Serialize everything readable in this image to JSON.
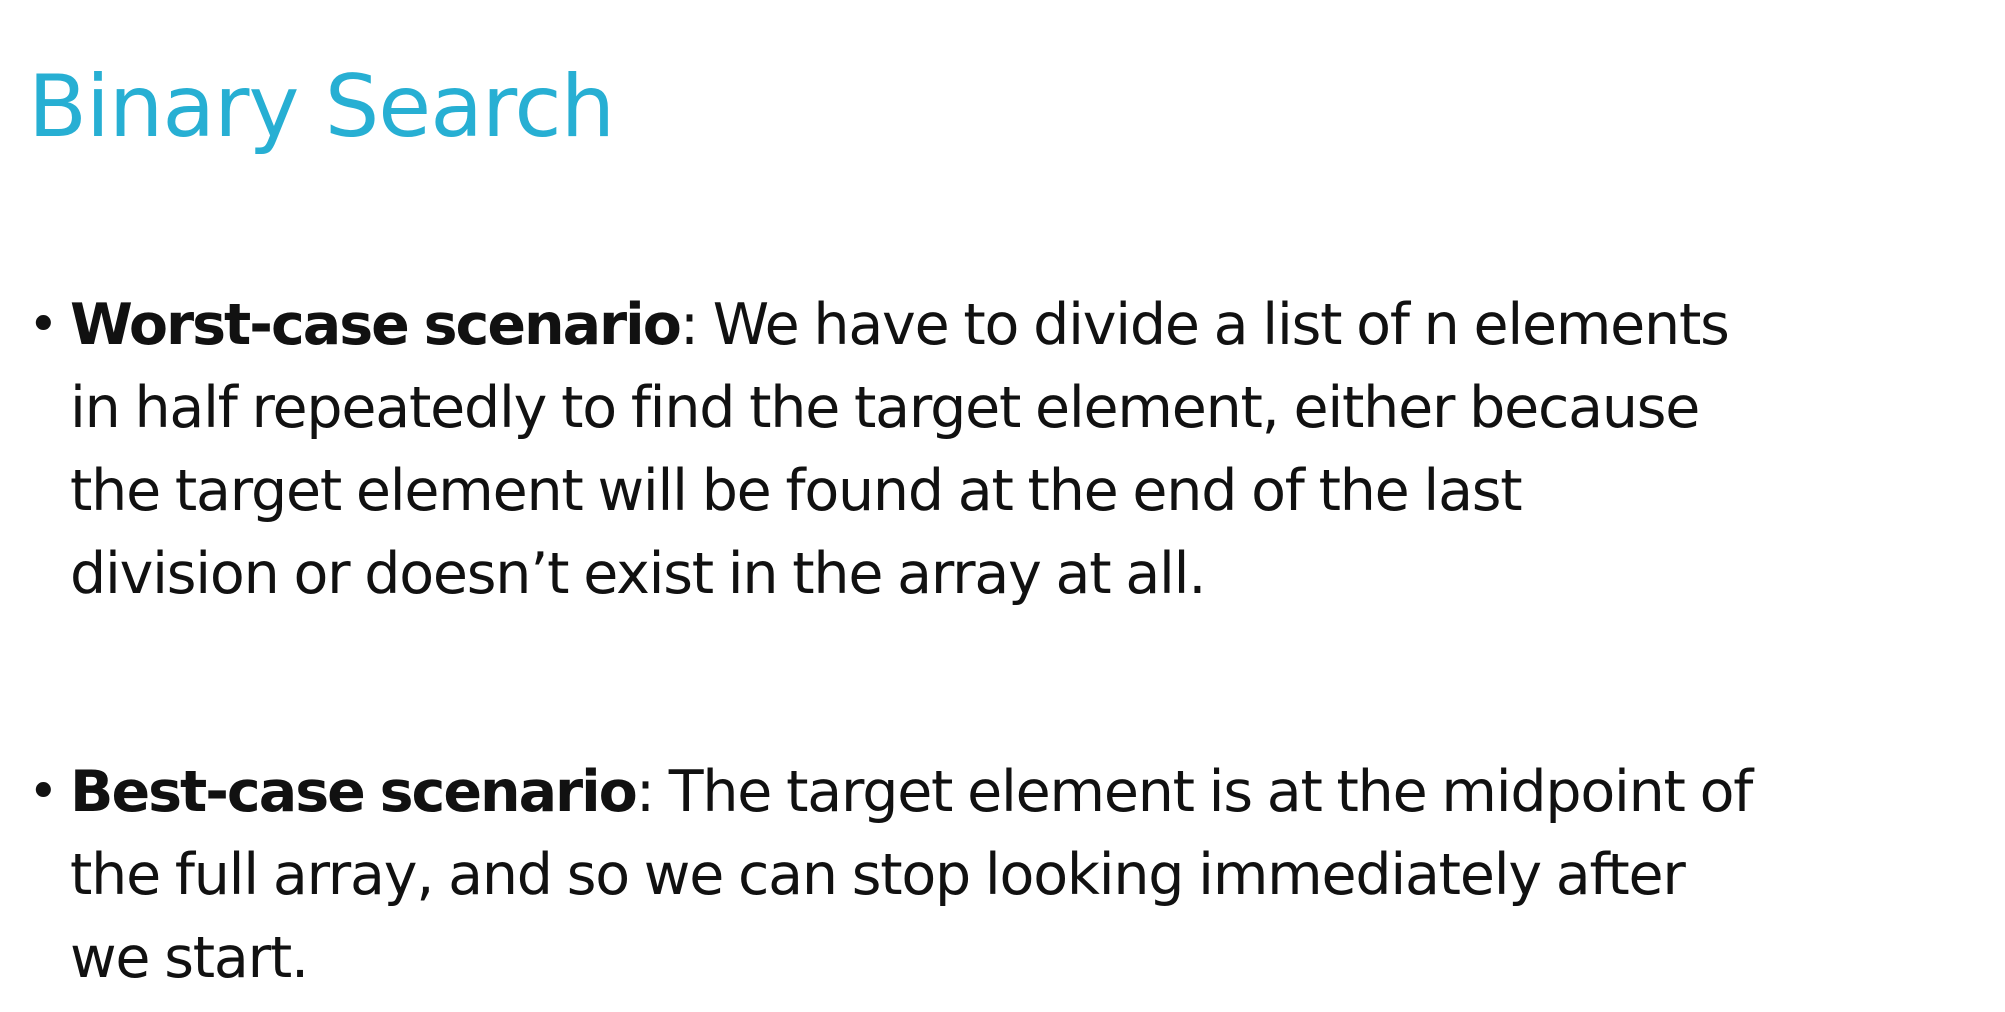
{
  "slide": {
    "title": "Binary Search",
    "title_color": "#27afd3",
    "text_color": "#111111",
    "bullet_glyph": "•",
    "bullets": [
      {
        "term": "Worst-case scenario",
        "line1_rest": ": We have to divide a list of n elements",
        "line2": "in half repeatedly to find the target element, either because",
        "line3": "the target element will be found at the end of the last",
        "line4": "division or doesn’t exist in the array at all."
      },
      {
        "term": "Best-case scenario",
        "line1_rest": ": The target element is at the midpoint of",
        "line2": "the full array, and so we can stop looking immediately after",
        "line3": "we start."
      }
    ]
  }
}
